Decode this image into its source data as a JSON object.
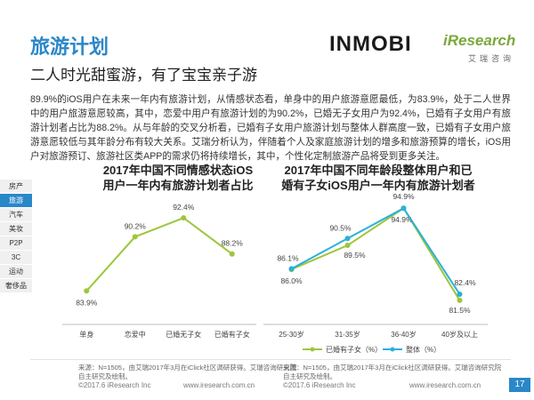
{
  "header": {
    "title": "旅游计划",
    "subtitle": "二人时光甜蜜游，有了宝宝亲子游",
    "logo_inmobi": "INMOBI",
    "logo_iresearch": "iResearch",
    "logo_iresearch_sub": "艾瑞咨询"
  },
  "paragraph": "89.9%的iOS用户在未来一年内有旅游计划，从情感状态看，单身中的用户旅游意愿最低，为83.9%，处于二人世界中的用户旅游意愿较高，其中，恋爱中用户有旅游计划的为90.2%，已婚无子女用户为92.4%，已婚有子女用户有旅游计划者占比为88.2%。从与年龄的交叉分析看，已婚有子女用户旅游计划与整体人群高度一致，已婚有子女用户旅游意愿较低与其年龄分布有较大关系。艾瑞分析认为，伴随着个人及家庭旅游计划的增多和旅游预算的增长，iOS用户对旅游预订、旅游社区类APP的需求仍将持续增长，其中，个性化定制旅游产品将受到更多关注。",
  "sidebar": {
    "items": [
      {
        "label": "房产"
      },
      {
        "label": "旅游"
      },
      {
        "label": "汽车"
      },
      {
        "label": "美妆"
      },
      {
        "label": "P2P"
      },
      {
        "label": "3C"
      },
      {
        "label": "运动"
      },
      {
        "label": "奢侈品"
      }
    ],
    "active_index": 1
  },
  "chart_data": [
    {
      "type": "line",
      "title": "2017年中国不同情感状态iOS用户一年内有旅游计划者占比",
      "title_lines": [
        "2017年中国不同情感状态iOS",
        "用户一年内有旅游计划者占比"
      ],
      "categories": [
        "单身",
        "恋爱中",
        "已婚无子女",
        "已婚有子女"
      ],
      "series": [
        {
          "values": [
            83.9,
            90.2,
            92.4,
            88.2
          ],
          "labels": [
            "83.9%",
            "90.2%",
            "92.4%",
            "88.2%"
          ],
          "color": "#9dc63a"
        }
      ],
      "ylim": [
        80,
        95
      ],
      "grid": false
    },
    {
      "type": "line",
      "title": "2017年中国不同年龄段整体用户和已婚有子女iOS用户一年内有旅游计划者",
      "title_lines": [
        "2017年中国不同年龄段整体用户和已",
        "婚有子女iOS用户一年内有旅游计划者"
      ],
      "categories": [
        "25-30岁",
        "31-35岁",
        "36-40岁",
        "40岁及以上"
      ],
      "series": [
        {
          "name": "已婚有子女（%）",
          "values": [
            86.0,
            89.5,
            94.9,
            81.5
          ],
          "labels": [
            "86.0%",
            "89.5%",
            "94.9%",
            "81.5%"
          ],
          "color": "#9dc63a"
        },
        {
          "name": "整体（%）",
          "values": [
            86.1,
            90.5,
            94.9,
            82.4
          ],
          "labels": [
            "86.1%",
            "90.5%",
            "94.9%",
            "82.4%"
          ],
          "color": "#2ab0dc"
        }
      ],
      "ylim": [
        78,
        97
      ],
      "legend": "bottom",
      "grid": false
    }
  ],
  "sources": {
    "left": "来源：N=1505，由艾瑞2017年3月在iClick社区调研获得。艾瑞咨询研究院自主研究及绘制。",
    "right": "来源：N=1505，由艾瑞2017年3月在iClick社区调研获得。艾瑞咨询研究院自主研究及绘制。",
    "left_lines": [
      "来源：N=1505，由艾瑞2017年3月在iClick社区调研获得。艾瑞咨询研究院",
      "自主研究及绘制。"
    ],
    "right_lines": [
      "来源：N=1505，由艾瑞2017年3月在iClick社区调研获得。艾瑞咨询研究院",
      "自主研究及绘制。"
    ]
  },
  "footer": {
    "copyright_left": "©2017.6 iResearch Inc",
    "url_left": "www.iresearch.com.cn",
    "copyright_right": "©2017.6 iResearch Inc",
    "url_right": "www.iresearch.com.cn",
    "page_number": "17"
  }
}
